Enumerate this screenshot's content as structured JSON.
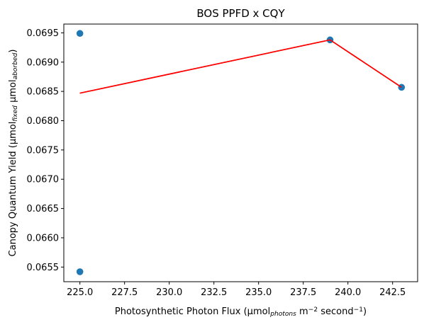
{
  "chart_data": {
    "type": "scatter",
    "title": "BOS PPFD x CQY",
    "xlabel": {
      "parts": [
        {
          "text": "Photosynthetic Photon Flux (µmol",
          "style": "normal"
        },
        {
          "text": "photons",
          "style": "sub-italic"
        },
        {
          "text": " m",
          "style": "normal"
        },
        {
          "text": "−2",
          "style": "sup"
        },
        {
          "text": " second",
          "style": "normal"
        },
        {
          "text": "−1",
          "style": "sup"
        },
        {
          "text": ")",
          "style": "normal"
        }
      ]
    },
    "ylabel": {
      "parts": [
        {
          "text": "Canopy Quantum Yield (µmol",
          "style": "normal"
        },
        {
          "text": "fixed",
          "style": "sub-italic"
        },
        {
          "text": " µmol",
          "style": "normal"
        },
        {
          "text": "aborbed",
          "style": "sub-italic"
        },
        {
          "text": ")",
          "style": "normal"
        }
      ]
    },
    "xlim": [
      224.1,
      243.9
    ],
    "ylim": [
      0.06525,
      0.06965
    ],
    "xticks": [
      225.0,
      227.5,
      230.0,
      232.5,
      235.0,
      237.5,
      240.0,
      242.5
    ],
    "xtick_labels": [
      "225.0",
      "227.5",
      "230.0",
      "232.5",
      "235.0",
      "237.5",
      "240.0",
      "242.5"
    ],
    "yticks": [
      0.0655,
      0.066,
      0.0665,
      0.067,
      0.0675,
      0.068,
      0.0685,
      0.069,
      0.0695
    ],
    "ytick_labels": [
      "0.0655",
      "0.0660",
      "0.0665",
      "0.0670",
      "0.0675",
      "0.0680",
      "0.0685",
      "0.0690",
      "0.0695"
    ],
    "grid": false,
    "series": [
      {
        "kind": "scatter",
        "color": "#1f77b4",
        "points": [
          [
            225,
            0.06949
          ],
          [
            225,
            0.06542
          ],
          [
            239,
            0.06938
          ],
          [
            243,
            0.06857
          ]
        ]
      },
      {
        "kind": "line",
        "color": "#ff0000",
        "points": [
          [
            225,
            0.06847
          ],
          [
            239,
            0.06938
          ],
          [
            243,
            0.06857
          ]
        ]
      }
    ]
  }
}
